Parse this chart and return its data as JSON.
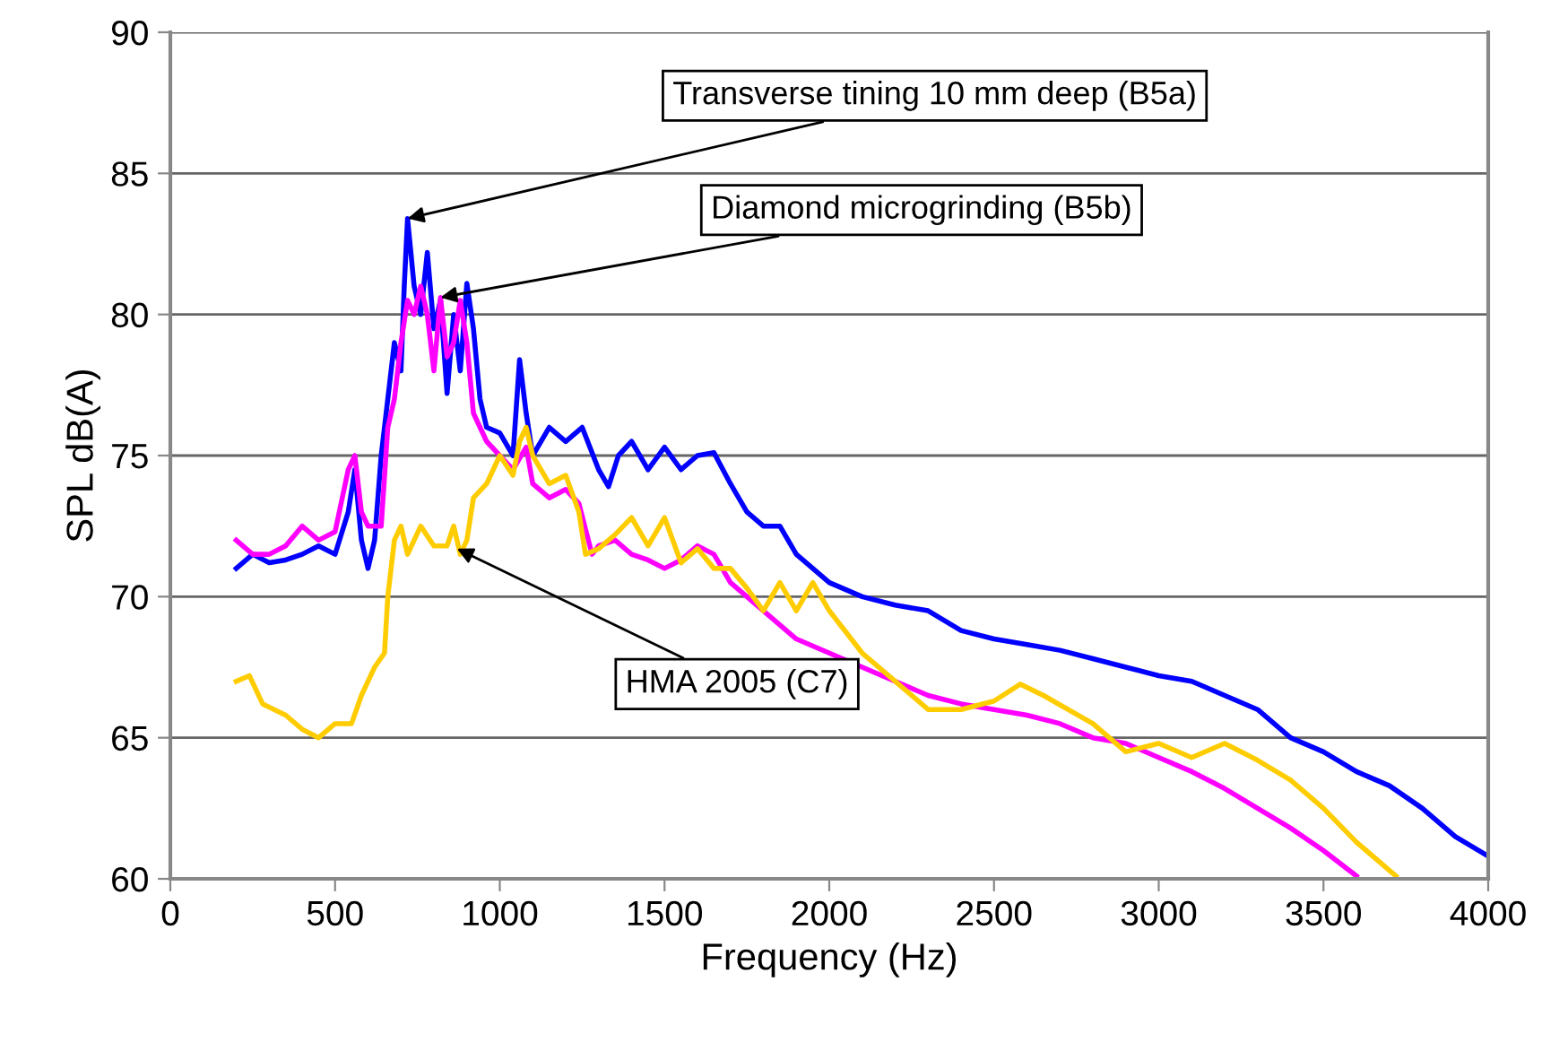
{
  "chart_data": {
    "type": "line",
    "xlabel": "Frequency (Hz)",
    "ylabel": "SPL dB(A)",
    "xlim": [
      0,
      4000
    ],
    "xticks": [
      0,
      500,
      1000,
      1500,
      2000,
      2500,
      3000,
      3500,
      4000
    ],
    "ylim": [
      60,
      90
    ],
    "yticks": [
      60,
      65,
      70,
      75,
      80,
      85,
      90
    ],
    "grid": "y",
    "legend": false,
    "marker": "none",
    "line_style": "solid",
    "series": [
      {
        "color": "#0000ff",
        "x": [
          200,
          250,
          300,
          350,
          400,
          450,
          500,
          540,
          560,
          580,
          600,
          620,
          640,
          660,
          680,
          700,
          710,
          720,
          740,
          760,
          780,
          800,
          820,
          840,
          860,
          880,
          900,
          920,
          940,
          960,
          1000,
          1040,
          1060,
          1080,
          1100,
          1150,
          1200,
          1250,
          1300,
          1330,
          1360,
          1400,
          1450,
          1500,
          1550,
          1600,
          1650,
          1700,
          1750,
          1800,
          1850,
          1900,
          1950,
          2000,
          2100,
          2200,
          2300,
          2400,
          2500,
          2600,
          2700,
          2800,
          2900,
          3000,
          3100,
          3200,
          3300,
          3400,
          3500,
          3600,
          3700,
          3800,
          3900,
          4000
        ],
        "values": [
          71.0,
          71.5,
          71.2,
          71.3,
          71.5,
          71.8,
          71.5,
          73,
          74.5,
          72,
          71.0,
          72,
          75,
          77,
          79,
          78,
          81,
          83.4,
          81,
          80,
          82.2,
          79.5,
          80.5,
          77.2,
          80,
          78,
          81.1,
          79.5,
          77,
          76,
          75.8,
          75,
          78.4,
          76.5,
          75,
          76,
          75.5,
          76.0,
          74.5,
          73.9,
          75,
          75.5,
          74.5,
          75.3,
          74.5,
          75,
          75.1,
          74,
          73,
          72.5,
          72.5,
          71.5,
          71,
          70.5,
          70.0,
          69.7,
          69.5,
          68.8,
          68.5,
          68.3,
          68.1,
          67.8,
          67.5,
          67.2,
          67.0,
          66.5,
          66.0,
          65.0,
          64.5,
          63.8,
          63.3,
          62.5,
          61.5,
          60.8
        ]
      },
      {
        "color": "#ff00ff",
        "x": [
          200,
          250,
          300,
          350,
          400,
          450,
          500,
          540,
          560,
          580,
          600,
          640,
          660,
          680,
          700,
          720,
          740,
          760,
          780,
          800,
          820,
          840,
          860,
          880,
          900,
          920,
          960,
          1000,
          1040,
          1080,
          1100,
          1150,
          1200,
          1240,
          1280,
          1300,
          1350,
          1400,
          1450,
          1500,
          1550,
          1600,
          1650,
          1700,
          1800,
          1900,
          2000,
          2100,
          2200,
          2300,
          2400,
          2500,
          2600,
          2700,
          2800,
          2900,
          3000,
          3100,
          3200,
          3300,
          3400,
          3500,
          3600
        ],
        "values": [
          72,
          71.5,
          71.5,
          71.8,
          72.5,
          72,
          72.3,
          74.5,
          75,
          73,
          72.5,
          72.5,
          76,
          77,
          79,
          80.5,
          80,
          81,
          80,
          78,
          80.6,
          78.5,
          79,
          80.5,
          79,
          76.5,
          75.5,
          75,
          74.5,
          75.3,
          74,
          73.5,
          73.8,
          73.3,
          71.5,
          71.8,
          72,
          71.5,
          71.3,
          71,
          71.3,
          71.8,
          71.5,
          70.5,
          69.5,
          68.5,
          68,
          67.5,
          67,
          66.5,
          66.2,
          66,
          65.8,
          65.5,
          65,
          64.8,
          64.3,
          63.8,
          63.2,
          62.5,
          61.8,
          61,
          60.1
        ]
      },
      {
        "color": "#ffcc00",
        "x": [
          200,
          240,
          280,
          350,
          400,
          450,
          500,
          550,
          580,
          620,
          650,
          660,
          680,
          700,
          720,
          760,
          800,
          840,
          860,
          880,
          900,
          920,
          960,
          1000,
          1040,
          1060,
          1080,
          1100,
          1150,
          1200,
          1240,
          1260,
          1300,
          1350,
          1400,
          1450,
          1500,
          1550,
          1600,
          1650,
          1700,
          1750,
          1800,
          1850,
          1900,
          1950,
          2000,
          2100,
          2200,
          2300,
          2400,
          2500,
          2580,
          2650,
          2800,
          2900,
          3000,
          3100,
          3200,
          3300,
          3400,
          3500,
          3600,
          3700,
          3720
        ],
        "values": [
          67,
          67.2,
          66.2,
          65.8,
          65.3,
          65,
          65.5,
          65.5,
          66.5,
          67.5,
          68,
          70,
          72,
          72.5,
          71.5,
          72.5,
          71.8,
          71.8,
          72.5,
          71.5,
          72,
          73.5,
          74,
          75,
          74.3,
          75.5,
          76,
          75,
          74,
          74.3,
          73,
          71.5,
          71.7,
          72.2,
          72.8,
          71.8,
          72.8,
          71.2,
          71.7,
          71,
          71.0,
          70.3,
          69.5,
          70.5,
          69.5,
          70.5,
          69.5,
          68,
          67,
          66,
          66,
          66.3,
          66.9,
          66.5,
          65.5,
          64.5,
          64.8,
          64.3,
          64.8,
          64.2,
          63.5,
          62.5,
          61.3,
          60.3,
          60.1
        ]
      }
    ],
    "annotations": [
      {
        "text": "Transverse tining 10 mm deep (B5a)",
        "x": 720,
        "y": 83.4
      },
      {
        "text": "Diamond microgrinding (B5b)",
        "x": 820,
        "y": 80.6
      },
      {
        "text": "HMA 2005 (C7)",
        "x": 870,
        "y": 71.7
      }
    ]
  }
}
